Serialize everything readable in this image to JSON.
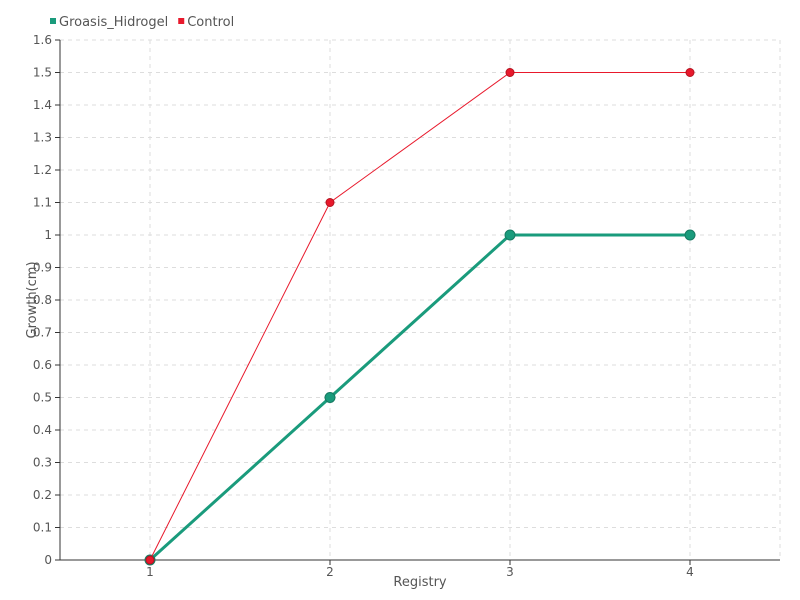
{
  "chart_data": {
    "type": "line",
    "categories": [
      "1",
      "2",
      "3",
      "4"
    ],
    "xlabel": "Registry",
    "ylabel": "Growth(cm)",
    "ylim": [
      0,
      1.6
    ],
    "y_ticks": [
      "0",
      "0.1",
      "0.2",
      "0.3",
      "0.4",
      "0.5",
      "0.6",
      "0.7",
      "0.8",
      "0.9",
      "1",
      "1.1",
      "1.2",
      "1.3",
      "1.4",
      "1.5",
      "1.6"
    ],
    "grid": true,
    "legend_position": "top-left",
    "series": [
      {
        "name": "Groasis_Hidrogel",
        "values": [
          0,
          0.5,
          1.0,
          1.0
        ],
        "color": "#1a9b7c"
      },
      {
        "name": "Control",
        "values": [
          0,
          1.1,
          1.5,
          1.5
        ],
        "color": "#e8192c"
      }
    ]
  }
}
